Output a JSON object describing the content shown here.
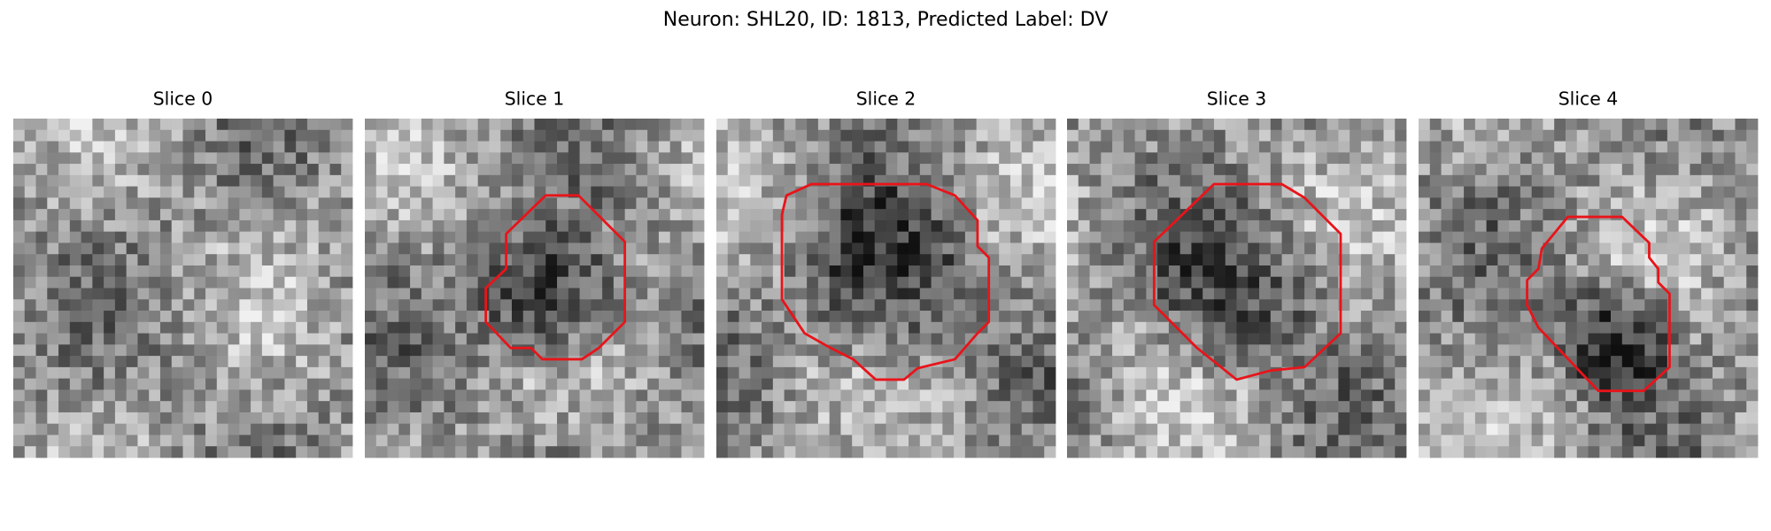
{
  "figure": {
    "title": "Neuron: SHL20, ID: 1813, Predicted Label: DV",
    "panels": [
      {
        "title": "Slice 0"
      },
      {
        "title": "Slice 1"
      },
      {
        "title": "Slice 2"
      },
      {
        "title": "Slice 3"
      },
      {
        "title": "Slice 4"
      }
    ]
  }
}
